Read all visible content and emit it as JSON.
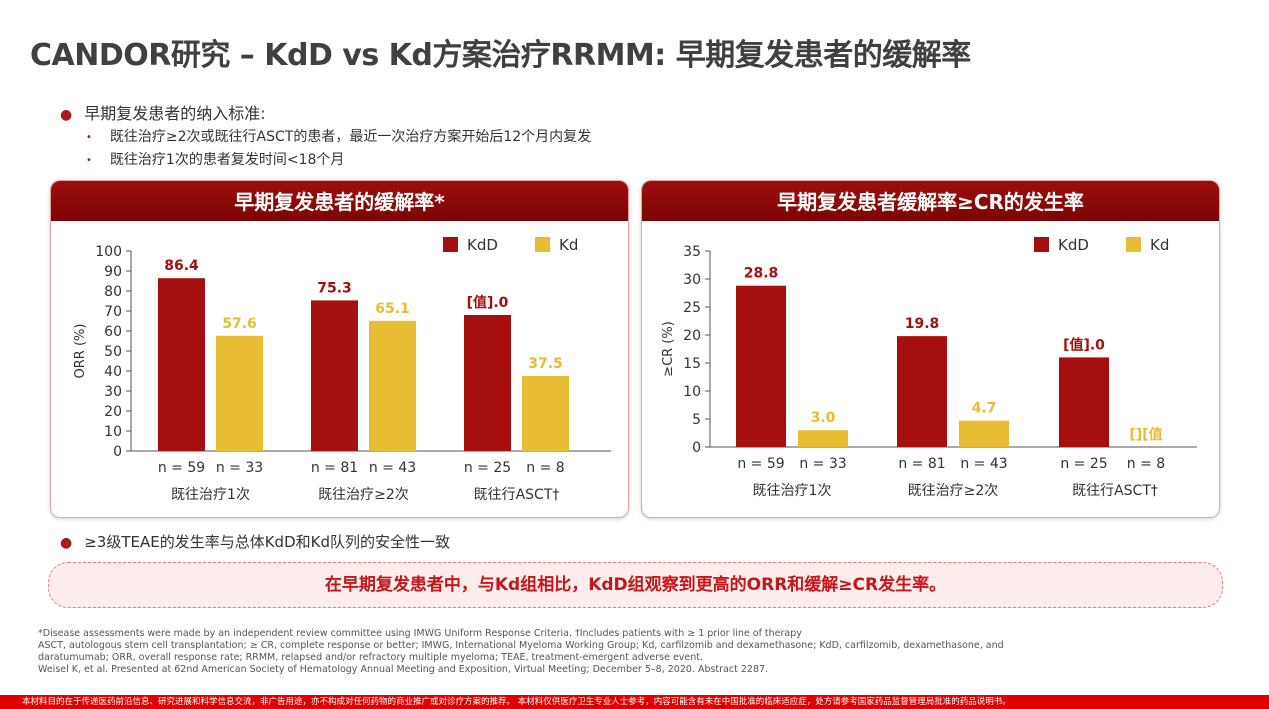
{
  "title": "CANDOR研究 – KdD vs Kd方案治疗RRMM: 早期复发患者的缓解率",
  "bullets": {
    "main": "早期复发患者的纳入标准:",
    "sub1": "既往治疗≥2次或既往行ASCT的患者，最近一次治疗方案开始后12个月内复发",
    "sub2": "既往治疗1次的患者复发时间<18个月",
    "safety": "≥3级TEAE的发生率与总体KdD和Kd队列的安全性一致"
  },
  "colors": {
    "kdd": "#a50f0f",
    "kd": "#e8bd33",
    "header": "#8c0808",
    "accent": "#c41717"
  },
  "left_panel": {
    "header": "早期复发患者的缓解率*"
  },
  "right_panel": {
    "header": "早期复发患者缓解率≥CR的发生率"
  },
  "chart_data": [
    {
      "type": "bar",
      "title": "早期复发患者的缓解率*",
      "ylabel": "ORR (%)",
      "ylim": [
        0,
        100
      ],
      "yticks": [
        0,
        10,
        20,
        30,
        40,
        50,
        60,
        70,
        80,
        90,
        100
      ],
      "categories": [
        "既往治疗1次",
        "既往治疗≥2次",
        "既往行ASCT†"
      ],
      "legend": "top-right",
      "series": [
        {
          "name": "KdD",
          "values": [
            86.4,
            75.3,
            68.0
          ],
          "labels": [
            "86.4",
            "75.3",
            "[值].0"
          ],
          "n": [
            "n = 59",
            "n = 81",
            "n = 25"
          ]
        },
        {
          "name": "Kd",
          "values": [
            57.6,
            65.1,
            37.5
          ],
          "labels": [
            "57.6",
            "65.1",
            "37.5"
          ],
          "n": [
            "n = 33",
            "n = 43",
            "n = 8"
          ]
        }
      ]
    },
    {
      "type": "bar",
      "title": "早期复发患者缓解率≥CR的发生率",
      "ylabel": "≥CR (%)",
      "ylim": [
        0,
        35
      ],
      "yticks": [
        0,
        5,
        10,
        15,
        20,
        25,
        30,
        35
      ],
      "categories": [
        "既往治疗1次",
        "既往治疗≥2次",
        "既往行ASCT†"
      ],
      "legend": "top-right",
      "series": [
        {
          "name": "KdD",
          "values": [
            28.8,
            19.8,
            16.0
          ],
          "labels": [
            "28.8",
            "19.8",
            "[值].0"
          ],
          "n": [
            "n = 59",
            "n = 81",
            "n = 25"
          ]
        },
        {
          "name": "Kd",
          "values": [
            3.0,
            4.7,
            0
          ],
          "labels": [
            "3.0",
            "4.7",
            "[][值"
          ],
          "n": [
            "n = 33",
            "n = 43",
            "n = 8"
          ]
        }
      ]
    }
  ],
  "callout": "在早期复发患者中，与Kd组相比，KdD组观察到更高的ORR和缓解≥CR发生率。",
  "footnotes": [
    "*Disease assessments were made by an independent review committee using IMWG Uniform Response Criteria. †Includes patients with ≥ 1 prior line of therapy",
    "ASCT, autologous stem cell transplantation; ≥ CR, complete response or better; IMWG, International Myeloma Working Group; Kd, carfilzomib and dexamethasone; KdD, carfilzomib, dexamethasone, and",
    "daratumumab; ORR, overall response rate; RRMM, relapsed and/or refractory multiple myeloma; TEAE, treatment-emergent adverse event.",
    "Weisel K, et al. Presented at 62nd American Society of Hematology Annual Meeting and Exposition, Virtual Meeting; December 5–8, 2020. Abstract 2287."
  ],
  "disclaimer": "本材料目的在于传递医药前沿信息、研究进展和科学信息交流，非广告用途，亦不构成对任何药物的商业推广或对诊疗方案的推荐。 本材料仅供医疗卫生专业人士参考，内容可能含有未在中国批准的临床适应症，处方请参考国家药品监督管理局批准的药品说明书。"
}
